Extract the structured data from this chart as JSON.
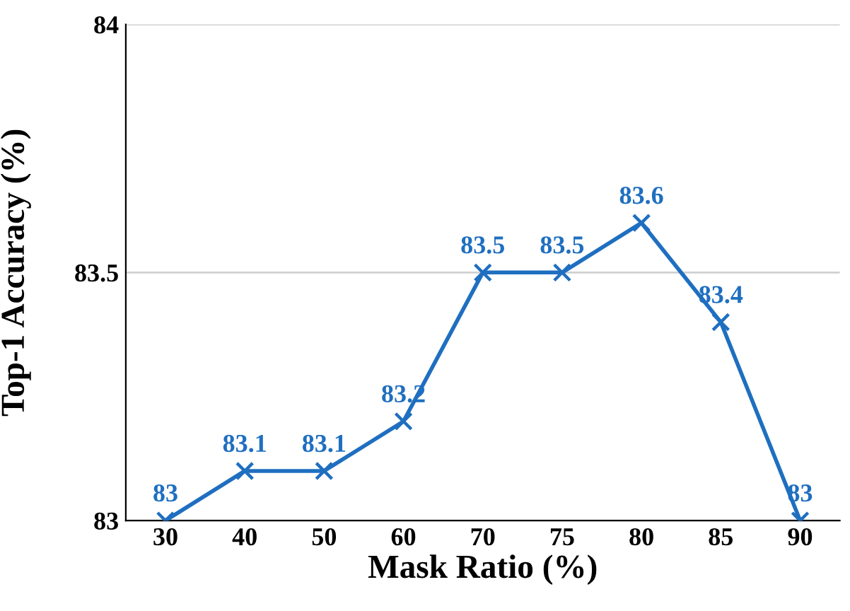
{
  "chart_data": {
    "type": "line",
    "xlabel": "Mask Ratio (%)",
    "ylabel": "Top-1 Accuracy (%)",
    "categories": [
      "30",
      "40",
      "50",
      "60",
      "70",
      "75",
      "80",
      "85",
      "90"
    ],
    "series": [
      {
        "color": "#1f6fc0",
        "values": [
          83,
          83.1,
          83.1,
          83.2,
          83.5,
          83.5,
          83.6,
          83.4,
          83
        ]
      }
    ],
    "ylim": [
      83,
      84
    ],
    "yticks": [
      83,
      83.5,
      84
    ],
    "grid": "y",
    "marker": "cross",
    "line_style": "solid",
    "data_labels": true
  }
}
